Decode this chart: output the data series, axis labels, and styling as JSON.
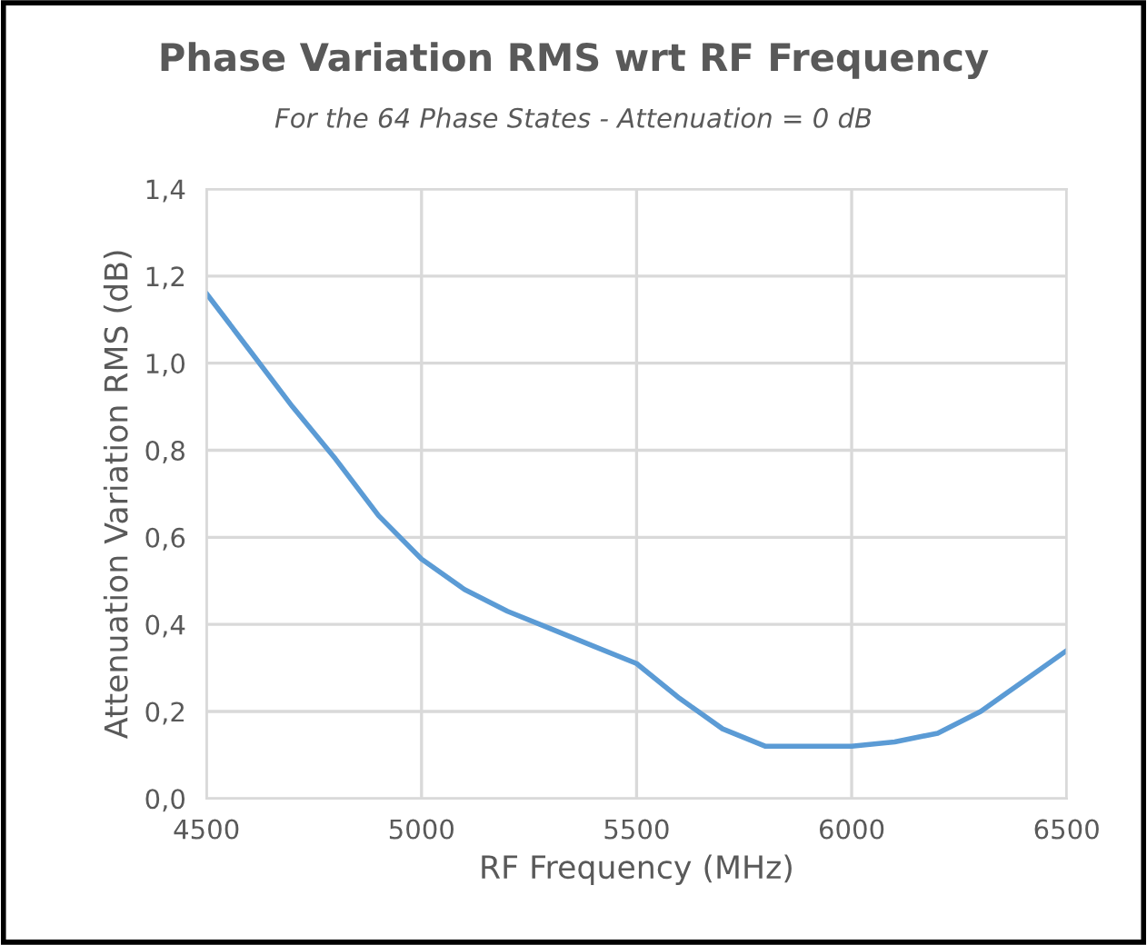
{
  "chart_data": {
    "type": "line",
    "title": "Phase Variation RMS wrt RF Frequency",
    "subtitle": "For the 64 Phase States - Attenuation = 0 dB",
    "xlabel": "RF Frequency (MHz)",
    "ylabel": "Attenuation Variation RMS (dB)",
    "x": [
      4500,
      4600,
      4700,
      4800,
      4900,
      5000,
      5100,
      5200,
      5300,
      5400,
      5500,
      5600,
      5700,
      5800,
      5900,
      6000,
      6100,
      6200,
      6300,
      6400,
      6500
    ],
    "series": [
      {
        "color": "#5b9bd5",
        "values": [
          1.16,
          1.03,
          0.9,
          0.78,
          0.65,
          0.55,
          0.48,
          0.43,
          0.39,
          0.35,
          0.31,
          0.23,
          0.16,
          0.12,
          0.12,
          0.12,
          0.13,
          0.15,
          0.2,
          0.27,
          0.34
        ]
      }
    ],
    "xlim": [
      4500,
      6500
    ],
    "xticks": [
      4500,
      5000,
      5500,
      6000,
      6500
    ],
    "ylim": [
      0,
      1.4
    ],
    "yticks": [
      {
        "value": 0,
        "label": "0,0"
      },
      {
        "value": 0.2,
        "label": "0,2"
      },
      {
        "value": 0.4,
        "label": "0,4"
      },
      {
        "value": 0.6,
        "label": "0,6"
      },
      {
        "value": 0.8,
        "label": "0,8"
      },
      {
        "value": 1.0,
        "label": "1,0"
      },
      {
        "value": 1.2,
        "label": "1,2"
      },
      {
        "value": 1.4,
        "label": "1,4"
      }
    ],
    "grid": true
  }
}
